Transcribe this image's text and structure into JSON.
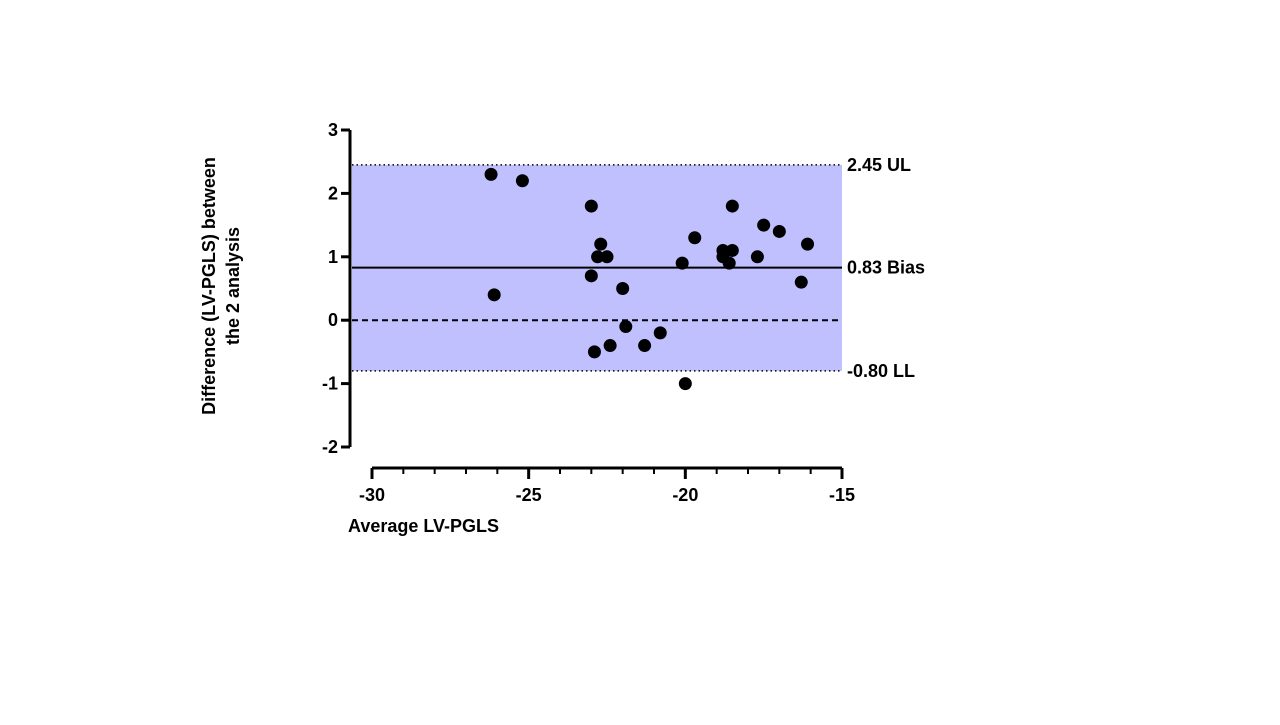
{
  "chart_data": {
    "type": "scatter",
    "title": "",
    "xlabel": "Average LV-PGLS",
    "ylabel": "Difference (LV-PGLS) between the 2 analysis",
    "ylabel_lines": [
      "Difference (LV-PGLS) between",
      "the 2 analysis"
    ],
    "xlim": [
      -30,
      -15
    ],
    "ylim": [
      -2,
      3
    ],
    "x_ticks": [
      -30,
      -25,
      -20,
      -15
    ],
    "x_tick_labels": [
      "-30",
      "-25",
      "-20",
      "-15"
    ],
    "y_ticks": [
      -2,
      -1,
      0,
      1,
      2,
      3
    ],
    "y_tick_labels": [
      "-2",
      "-1",
      "0",
      "1",
      "2",
      "3"
    ],
    "grid": false,
    "band_color": "#c0c0ff",
    "point_color": "#000000",
    "points": [
      {
        "x": -26.2,
        "y": 2.3
      },
      {
        "x": -25.2,
        "y": 2.2
      },
      {
        "x": -26.1,
        "y": 0.4
      },
      {
        "x": -23.0,
        "y": 1.8
      },
      {
        "x": -22.7,
        "y": 1.2
      },
      {
        "x": -22.8,
        "y": 1.0
      },
      {
        "x": -22.5,
        "y": 1.0
      },
      {
        "x": -23.0,
        "y": 0.7
      },
      {
        "x": -22.0,
        "y": 0.5
      },
      {
        "x": -21.9,
        "y": -0.1
      },
      {
        "x": -22.9,
        "y": -0.5
      },
      {
        "x": -22.4,
        "y": -0.4
      },
      {
        "x": -21.3,
        "y": -0.4
      },
      {
        "x": -20.8,
        "y": -0.2
      },
      {
        "x": -20.1,
        "y": 0.9
      },
      {
        "x": -19.7,
        "y": 1.3
      },
      {
        "x": -20.0,
        "y": -1.0
      },
      {
        "x": -18.8,
        "y": 1.1
      },
      {
        "x": -18.8,
        "y": 1.0
      },
      {
        "x": -18.6,
        "y": 0.9
      },
      {
        "x": -18.5,
        "y": 1.1
      },
      {
        "x": -18.5,
        "y": 1.8
      },
      {
        "x": -17.7,
        "y": 1.0
      },
      {
        "x": -17.5,
        "y": 1.5
      },
      {
        "x": -17.0,
        "y": 1.4
      },
      {
        "x": -16.3,
        "y": 0.6
      },
      {
        "x": -16.1,
        "y": 1.2
      }
    ],
    "lines": [
      {
        "name": "upper-limit",
        "y": 2.45,
        "style": "dotted",
        "label": "2.45 UL"
      },
      {
        "name": "bias",
        "y": 0.83,
        "style": "solid",
        "label": "0.83 Bias"
      },
      {
        "name": "zero",
        "y": 0,
        "style": "dashed",
        "label": ""
      },
      {
        "name": "lower-limit",
        "y": -0.8,
        "style": "dotted",
        "label": "-0.80 LL"
      }
    ]
  }
}
